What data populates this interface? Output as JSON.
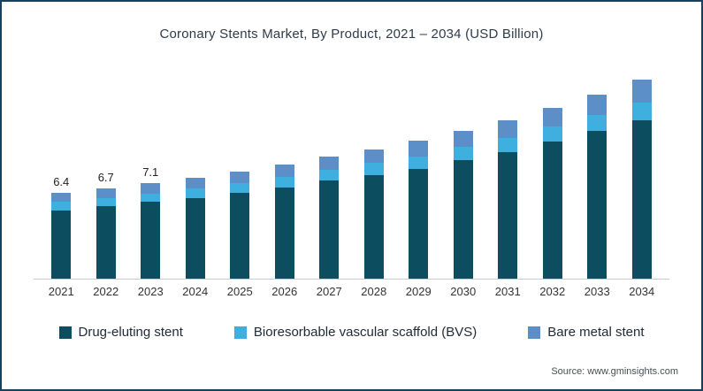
{
  "title": "Coronary Stents Market, By Product, 2021 – 2034 (USD Billion)",
  "source": "Source: www.gminsights.com",
  "frame_border_color": "#17425e",
  "chart_data": {
    "type": "bar",
    "stacked": true,
    "title": "Coronary Stents Market, By Product, 2021 – 2034 (USD Billion)",
    "xlabel": "",
    "ylabel": "USD Billion",
    "ylim": [
      0,
      16
    ],
    "grid": false,
    "legend_position": "bottom",
    "categories": [
      "2021",
      "2022",
      "2023",
      "2024",
      "2025",
      "2026",
      "2027",
      "2028",
      "2029",
      "2030",
      "2031",
      "2032",
      "2033",
      "2034"
    ],
    "series": [
      {
        "name": "Drug-eluting stent",
        "color": "#0d4d60",
        "values": [
          5.1,
          5.4,
          5.7,
          6.0,
          6.4,
          6.8,
          7.3,
          7.7,
          8.2,
          8.8,
          9.4,
          10.2,
          11.0,
          11.8
        ]
      },
      {
        "name": "Bioresorbable vascular scaffold (BVS)",
        "color": "#3fafdf",
        "values": [
          0.6,
          0.6,
          0.6,
          0.7,
          0.7,
          0.8,
          0.8,
          0.9,
          0.9,
          1.0,
          1.1,
          1.1,
          1.2,
          1.3
        ]
      },
      {
        "name": "Bare metal stent",
        "color": "#5c8fc7",
        "values": [
          0.7,
          0.7,
          0.8,
          0.8,
          0.9,
          0.9,
          1.0,
          1.0,
          1.2,
          1.2,
          1.3,
          1.4,
          1.5,
          1.7
        ]
      }
    ],
    "totals": [
      6.4,
      6.7,
      7.1,
      7.5,
      8.0,
      8.5,
      9.1,
      9.6,
      10.3,
      11.0,
      11.8,
      12.7,
      13.7,
      14.8
    ],
    "total_labels": [
      "6.4",
      "6.7",
      "7.1",
      "",
      "",
      "",
      "",
      "",
      "",
      "",
      "",
      "",
      "",
      ""
    ]
  },
  "legend": [
    {
      "label": "Drug-eluting stent",
      "color": "#0d4d60"
    },
    {
      "label": "Bioresorbable vascular scaffold (BVS)",
      "color": "#3fafdf"
    },
    {
      "label": "Bare metal stent",
      "color": "#5c8fc7"
    }
  ]
}
